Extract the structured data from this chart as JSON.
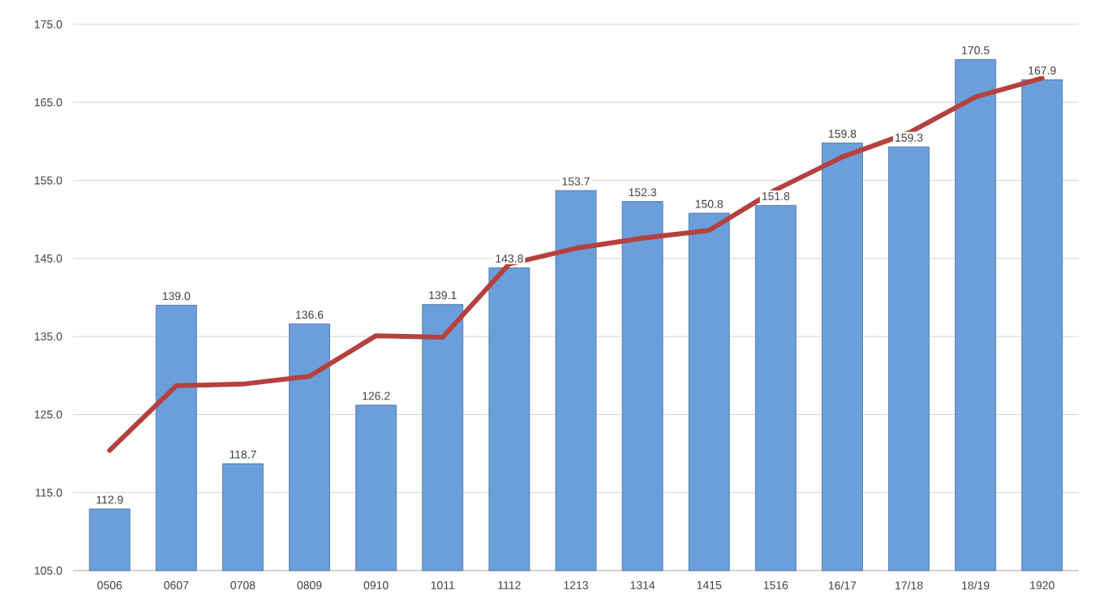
{
  "chart_data": {
    "type": "bar",
    "categories": [
      "0506",
      "0607",
      "0708",
      "0809",
      "0910",
      "1011",
      "1112",
      "1213",
      "1314",
      "1415",
      "1516",
      "16/17",
      "17/18",
      "18/19",
      "1920"
    ],
    "series": [
      {
        "color": "#6a9fdb",
        "values": [
          112.9,
          139.0,
          118.7,
          136.6,
          126.2,
          139.1,
          143.8,
          153.7,
          152.3,
          150.8,
          151.8,
          159.8,
          159.3,
          170.5,
          167.9
        ],
        "value_labels": [
          "112.9",
          "139.0",
          "118.7",
          "136.6",
          "126.2",
          "139.1",
          "143.8",
          "153.7",
          "152.3",
          "150.8",
          "151.8",
          "159.8",
          "159.3",
          "170.5",
          "167.9"
        ]
      },
      {
        "type": "line",
        "color": "#b5413f",
        "values": [
          120.4,
          128.7,
          128.9,
          129.9,
          135.1,
          134.9,
          144.3,
          146.3,
          147.6,
          148.6,
          153.8,
          158.0,
          161.1,
          165.7,
          168.1
        ]
      }
    ],
    "ylim": [
      105,
      175
    ],
    "yticks": [
      {
        "value": 105,
        "label": "105.0"
      },
      {
        "value": 115,
        "label": "115.0"
      },
      {
        "value": 125,
        "label": "125.0"
      },
      {
        "value": 135,
        "label": "135.0"
      },
      {
        "value": 145,
        "label": "145.0"
      },
      {
        "value": 155,
        "label": "155.0"
      },
      {
        "value": 165,
        "label": "165.0"
      },
      {
        "value": 175,
        "label": "175.0"
      }
    ],
    "grid": "y"
  }
}
